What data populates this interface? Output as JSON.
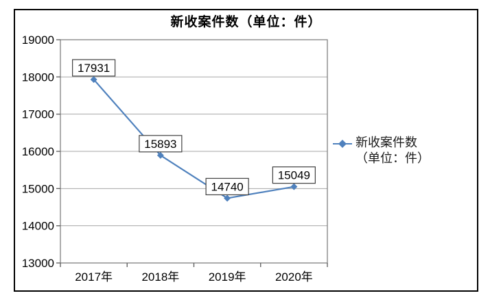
{
  "title": "新收案件数（单位：件）",
  "legend": {
    "line1": "新收案件数",
    "line2": "（单位：件）"
  },
  "chart_data": {
    "type": "line",
    "title": "新收案件数（单位：件）",
    "categories": [
      "2017年",
      "2018年",
      "2019年",
      "2020年"
    ],
    "series": [
      {
        "name": "新收案件数（单位：件）",
        "values": [
          17931,
          15893,
          14740,
          15049
        ]
      }
    ],
    "data_labels": [
      "17931",
      "15893",
      "14740",
      "15049"
    ],
    "xlabel": "",
    "ylabel": "",
    "ylim": [
      13000,
      19000
    ],
    "yticks": [
      13000,
      14000,
      15000,
      16000,
      17000,
      18000,
      19000
    ],
    "grid": "horizontal",
    "legend_position": "right",
    "marker": "diamond"
  },
  "colors": {
    "line": "#4F81BD",
    "marker": "#4F81BD",
    "gridline": "#a6a6a6",
    "plot_border": "#808080",
    "tick": "#595959",
    "axis_text": "#000000",
    "label_box_border": "#404040",
    "label_box_fill": "#ffffff",
    "frame_border": "#000000"
  }
}
